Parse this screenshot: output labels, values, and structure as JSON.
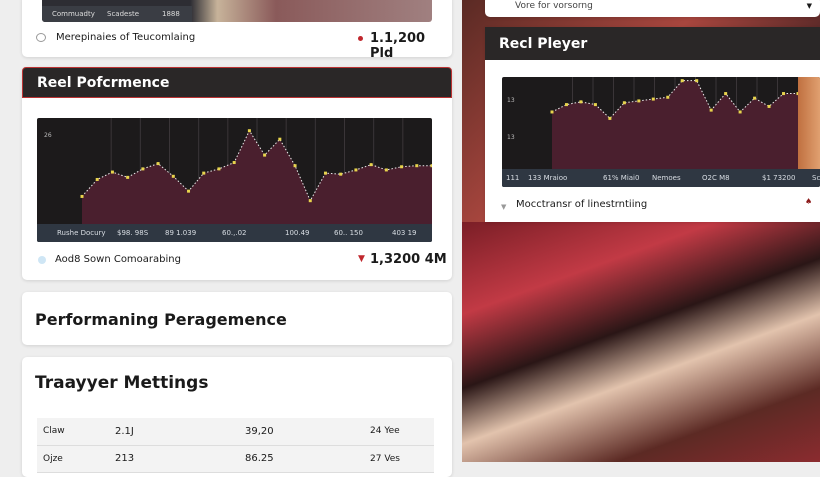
{
  "top_card": {
    "tabs": [
      "Commuadty",
      "Scadeste",
      "1888"
    ],
    "label": "Merepinaies of Teucomlaing",
    "value": "1.1,200 Pld"
  },
  "reel_performance": {
    "title": "Reel Pofcrmence",
    "footer_label": "Aod8 Sown Comoarabing",
    "footer_value": "1,3200 4M",
    "trend": "down",
    "chart_data": {
      "type": "area",
      "ytick": "26",
      "values": [
        26,
        42,
        49,
        44,
        52,
        57,
        45,
        31,
        48,
        52,
        58,
        88,
        65,
        80,
        55,
        22,
        48,
        47,
        51,
        56,
        51,
        54,
        55,
        55
      ],
      "xlabels": [
        "Rushe Docury",
        "$98. 98S",
        "89 1.039",
        "60.,.02",
        "100.49",
        "60.. 150",
        "403 19"
      ],
      "line_color": "#e8d44d",
      "fill_color": "#4a1f2e"
    }
  },
  "performance_card": {
    "title": "Performaning Peragemence"
  },
  "meetings": {
    "title": "Traayyer Mettings",
    "rows": [
      [
        "Claw",
        "2.1J",
        "39,20",
        "24 Yee"
      ],
      [
        "Ojze",
        "213",
        "86.25",
        "27 Ves"
      ]
    ]
  },
  "right_top": {
    "label": "Vore for vorsorng"
  },
  "reel_player": {
    "title": "Recl Pleyer",
    "footer_label": "Mocctransr of linestrntiing",
    "chart_data": {
      "type": "area",
      "yticks": [
        "13",
        "13"
      ],
      "values": [
        62,
        70,
        73,
        70,
        55,
        72,
        74,
        76,
        78,
        96,
        96,
        64,
        82,
        62,
        77,
        68,
        82,
        82
      ],
      "xlabels": [
        "111",
        "133 Mraioo",
        "61% Miai0",
        "Nemoes",
        "O2C M8",
        "$1 73200",
        "Sc"
      ],
      "line_color": "#e8d44d",
      "fill_color": "#4a1f2e"
    }
  },
  "colors": {
    "accent": "#c0272d",
    "header": "#2a2727"
  }
}
